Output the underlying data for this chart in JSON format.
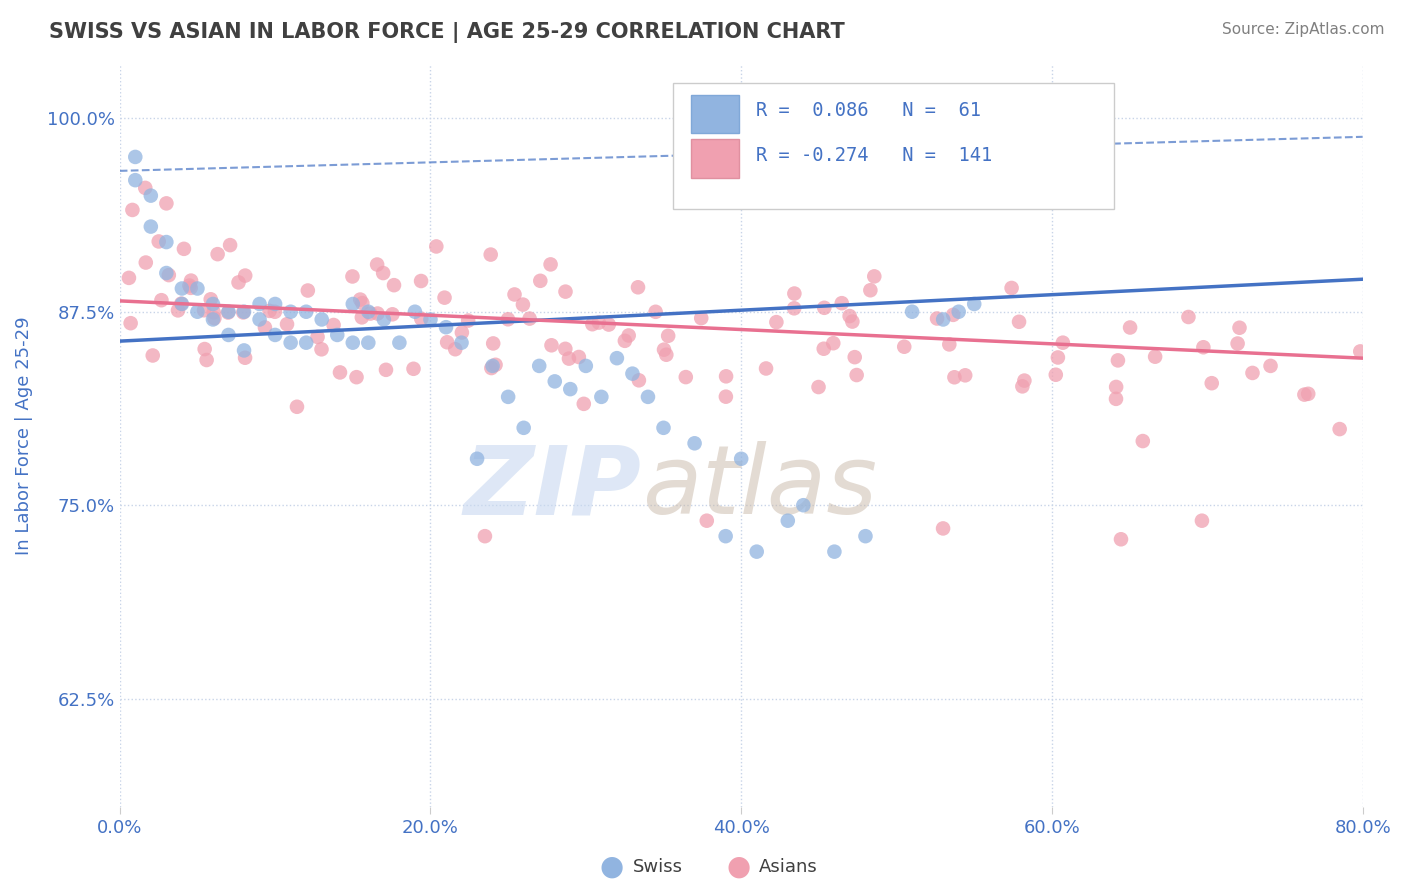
{
  "title": "SWISS VS ASIAN IN LABOR FORCE | AGE 25-29 CORRELATION CHART",
  "source_text": "Source: ZipAtlas.com",
  "ylabel": "In Labor Force | Age 25-29",
  "xlim": [
    0.0,
    0.8
  ],
  "ylim": [
    0.555,
    1.035
  ],
  "xtick_vals": [
    0.0,
    0.2,
    0.4,
    0.6,
    0.8
  ],
  "ytick_vals": [
    0.625,
    0.75,
    0.875,
    1.0
  ],
  "swiss_color": "#91b4e0",
  "asian_color": "#f0a0b0",
  "swiss_R": 0.086,
  "swiss_N": 61,
  "asian_R": -0.274,
  "asian_N": 141,
  "title_color": "#404040",
  "axis_label_color": "#4472c4",
  "tick_color": "#4472c4",
  "source_color": "#808080",
  "legend_r_color": "#4472c4",
  "background_color": "#ffffff",
  "grid_color": "#c8d4e8",
  "trend_swiss_color": "#4472c4",
  "trend_asian_color": "#e87090",
  "dashed_color": "#4472c4",
  "watermark_zip_color": "#c8d8f0",
  "watermark_atlas_color": "#c8b8a8"
}
